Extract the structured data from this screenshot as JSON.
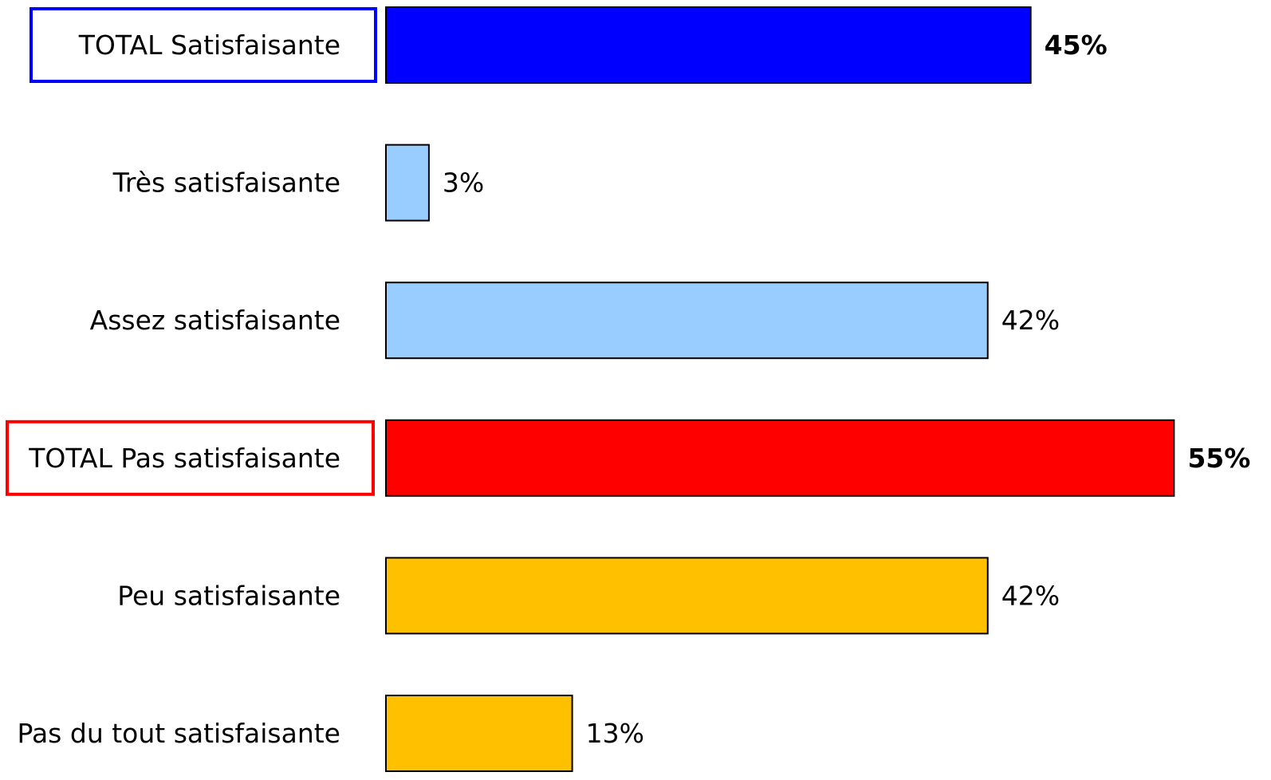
{
  "chart_data": {
    "type": "bar",
    "orientation": "horizontal",
    "categories": [
      "TOTAL Satisfaisante",
      "Très satisfaisante",
      "Assez satisfaisante",
      "TOTAL Pas satisfaisante",
      "Peu satisfaisante",
      "Pas du tout satisfaisante"
    ],
    "values": [
      45,
      3,
      42,
      55,
      42,
      13
    ],
    "value_labels": [
      "45%",
      "3%",
      "42%",
      "55%",
      "42%",
      "13%"
    ],
    "bar_colors": [
      "#0000ff",
      "#99ccff",
      "#99ccff",
      "#ff0000",
      "#ffc000",
      "#ffc000"
    ],
    "total_rows": [
      {
        "index": 0,
        "box_color": "#0000ff"
      },
      {
        "index": 3,
        "box_color": "#ff0000"
      }
    ],
    "xlim": [
      0,
      55
    ],
    "grid": false,
    "legend": "none"
  }
}
